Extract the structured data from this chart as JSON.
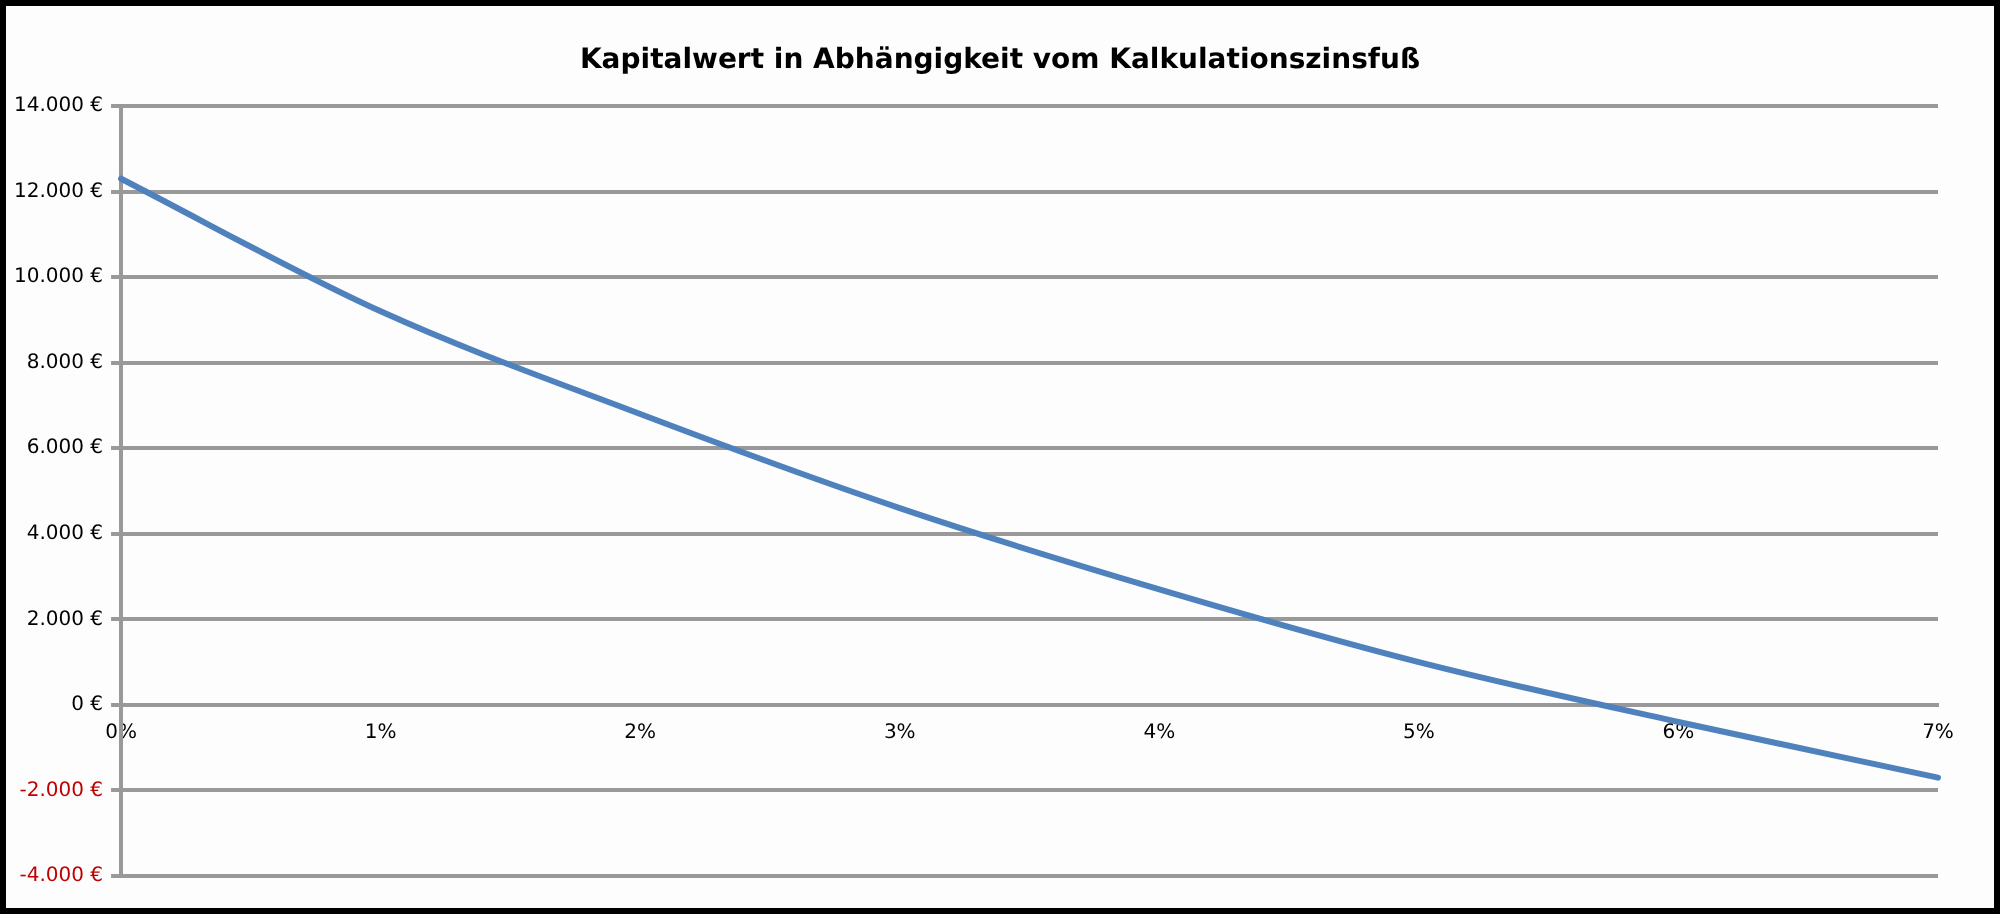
{
  "chart_data": {
    "type": "line",
    "title": "Kapitalwert in Abhängigkeit vom Kalkulationszinsfuß",
    "categories": [
      "0%",
      "1%",
      "2%",
      "3%",
      "4%",
      "5%",
      "6%",
      "7%"
    ],
    "series": [
      {
        "color": "#4f81bd",
        "values": [
          12300,
          9200,
          6800,
          4600,
          2700,
          1000,
          -400,
          -1700
        ]
      }
    ],
    "ylim": [
      -4000,
      14000
    ],
    "yticks": [
      {
        "value": -4000,
        "label": "-4.000 €"
      },
      {
        "value": -2000,
        "label": "-2.000 €"
      },
      {
        "value": 0,
        "label": "0 €"
      },
      {
        "value": 2000,
        "label": "2.000 €"
      },
      {
        "value": 4000,
        "label": "4.000 €"
      },
      {
        "value": 6000,
        "label": "6.000 €"
      },
      {
        "value": 8000,
        "label": "8.000 €"
      },
      {
        "value": 10000,
        "label": "10.000 €"
      },
      {
        "value": 12000,
        "label": "12.000 €"
      },
      {
        "value": 14000,
        "label": "14.000 €"
      }
    ],
    "grid": "y",
    "legend": false,
    "marker": "none",
    "line_style": "solid"
  }
}
